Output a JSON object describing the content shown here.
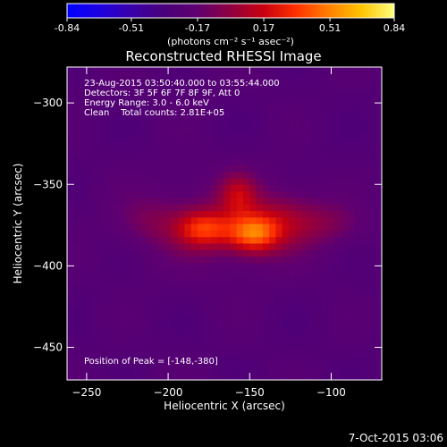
{
  "chart_data": {
    "type": "heatmap",
    "title": "Reconstructed RHESSI Image",
    "xlabel": "Heliocentric X (arcsec)",
    "ylabel": "Heliocentric Y (arcsec)",
    "xlim": [
      -262,
      -69
    ],
    "ylim": [
      -470,
      -278
    ],
    "x_ticks": [
      -250,
      -200,
      -150,
      -100
    ],
    "y_ticks": [
      -300,
      -350,
      -400,
      -450
    ],
    "colorbar": {
      "range": [
        -0.84,
        0.84
      ],
      "ticks": [
        "-0.84",
        "-0.51",
        "-0.17",
        "0.17",
        "0.51",
        "0.84"
      ],
      "units_label": "(photons cm⁻² s⁻¹ asec⁻²)",
      "colors": [
        "#0000ff",
        "#1e00e0",
        "#3a00a8",
        "#4a0078",
        "#600070",
        "#900040",
        "#c80010",
        "#ff3000",
        "#ff8000",
        "#ffc400",
        "#ffff80"
      ]
    },
    "annotations": {
      "time_range": "23-Aug-2015 03:50:40.000 to 03:55:44.000",
      "detectors": "Detectors: 3F 5F 6F 7F 8F 9F, Att 0",
      "energy_range": "Energy Range: 3.0 - 6.0 keV",
      "method_counts": "Clean    Total counts: 2.81E+05",
      "peak": "Position of Peak = [-148,-380]"
    },
    "peak": {
      "x": -148,
      "y": -380
    },
    "sources": [
      {
        "x": -148,
        "y": -380,
        "sx": 11,
        "sy": 8,
        "amp": 0.56
      },
      {
        "x": -178,
        "y": -377,
        "sx": 12,
        "sy": 8,
        "amp": 0.48
      },
      {
        "x": -157,
        "y": -356,
        "sx": 8,
        "sy": 9,
        "amp": 0.3
      },
      {
        "x": -130,
        "y": -372,
        "sx": 16,
        "sy": 11,
        "amp": 0.24
      },
      {
        "x": -100,
        "y": -374,
        "sx": 14,
        "sy": 9,
        "amp": 0.13
      },
      {
        "x": -210,
        "y": -372,
        "sx": 14,
        "sy": 10,
        "amp": 0.12
      },
      {
        "x": -165,
        "y": -375,
        "sx": 40,
        "sy": 22,
        "amp": 0.14
      }
    ],
    "background_level": -0.26,
    "pixel_size_arcsec": 4
  },
  "footer": {
    "date": "7-Oct-2015 03:06"
  }
}
